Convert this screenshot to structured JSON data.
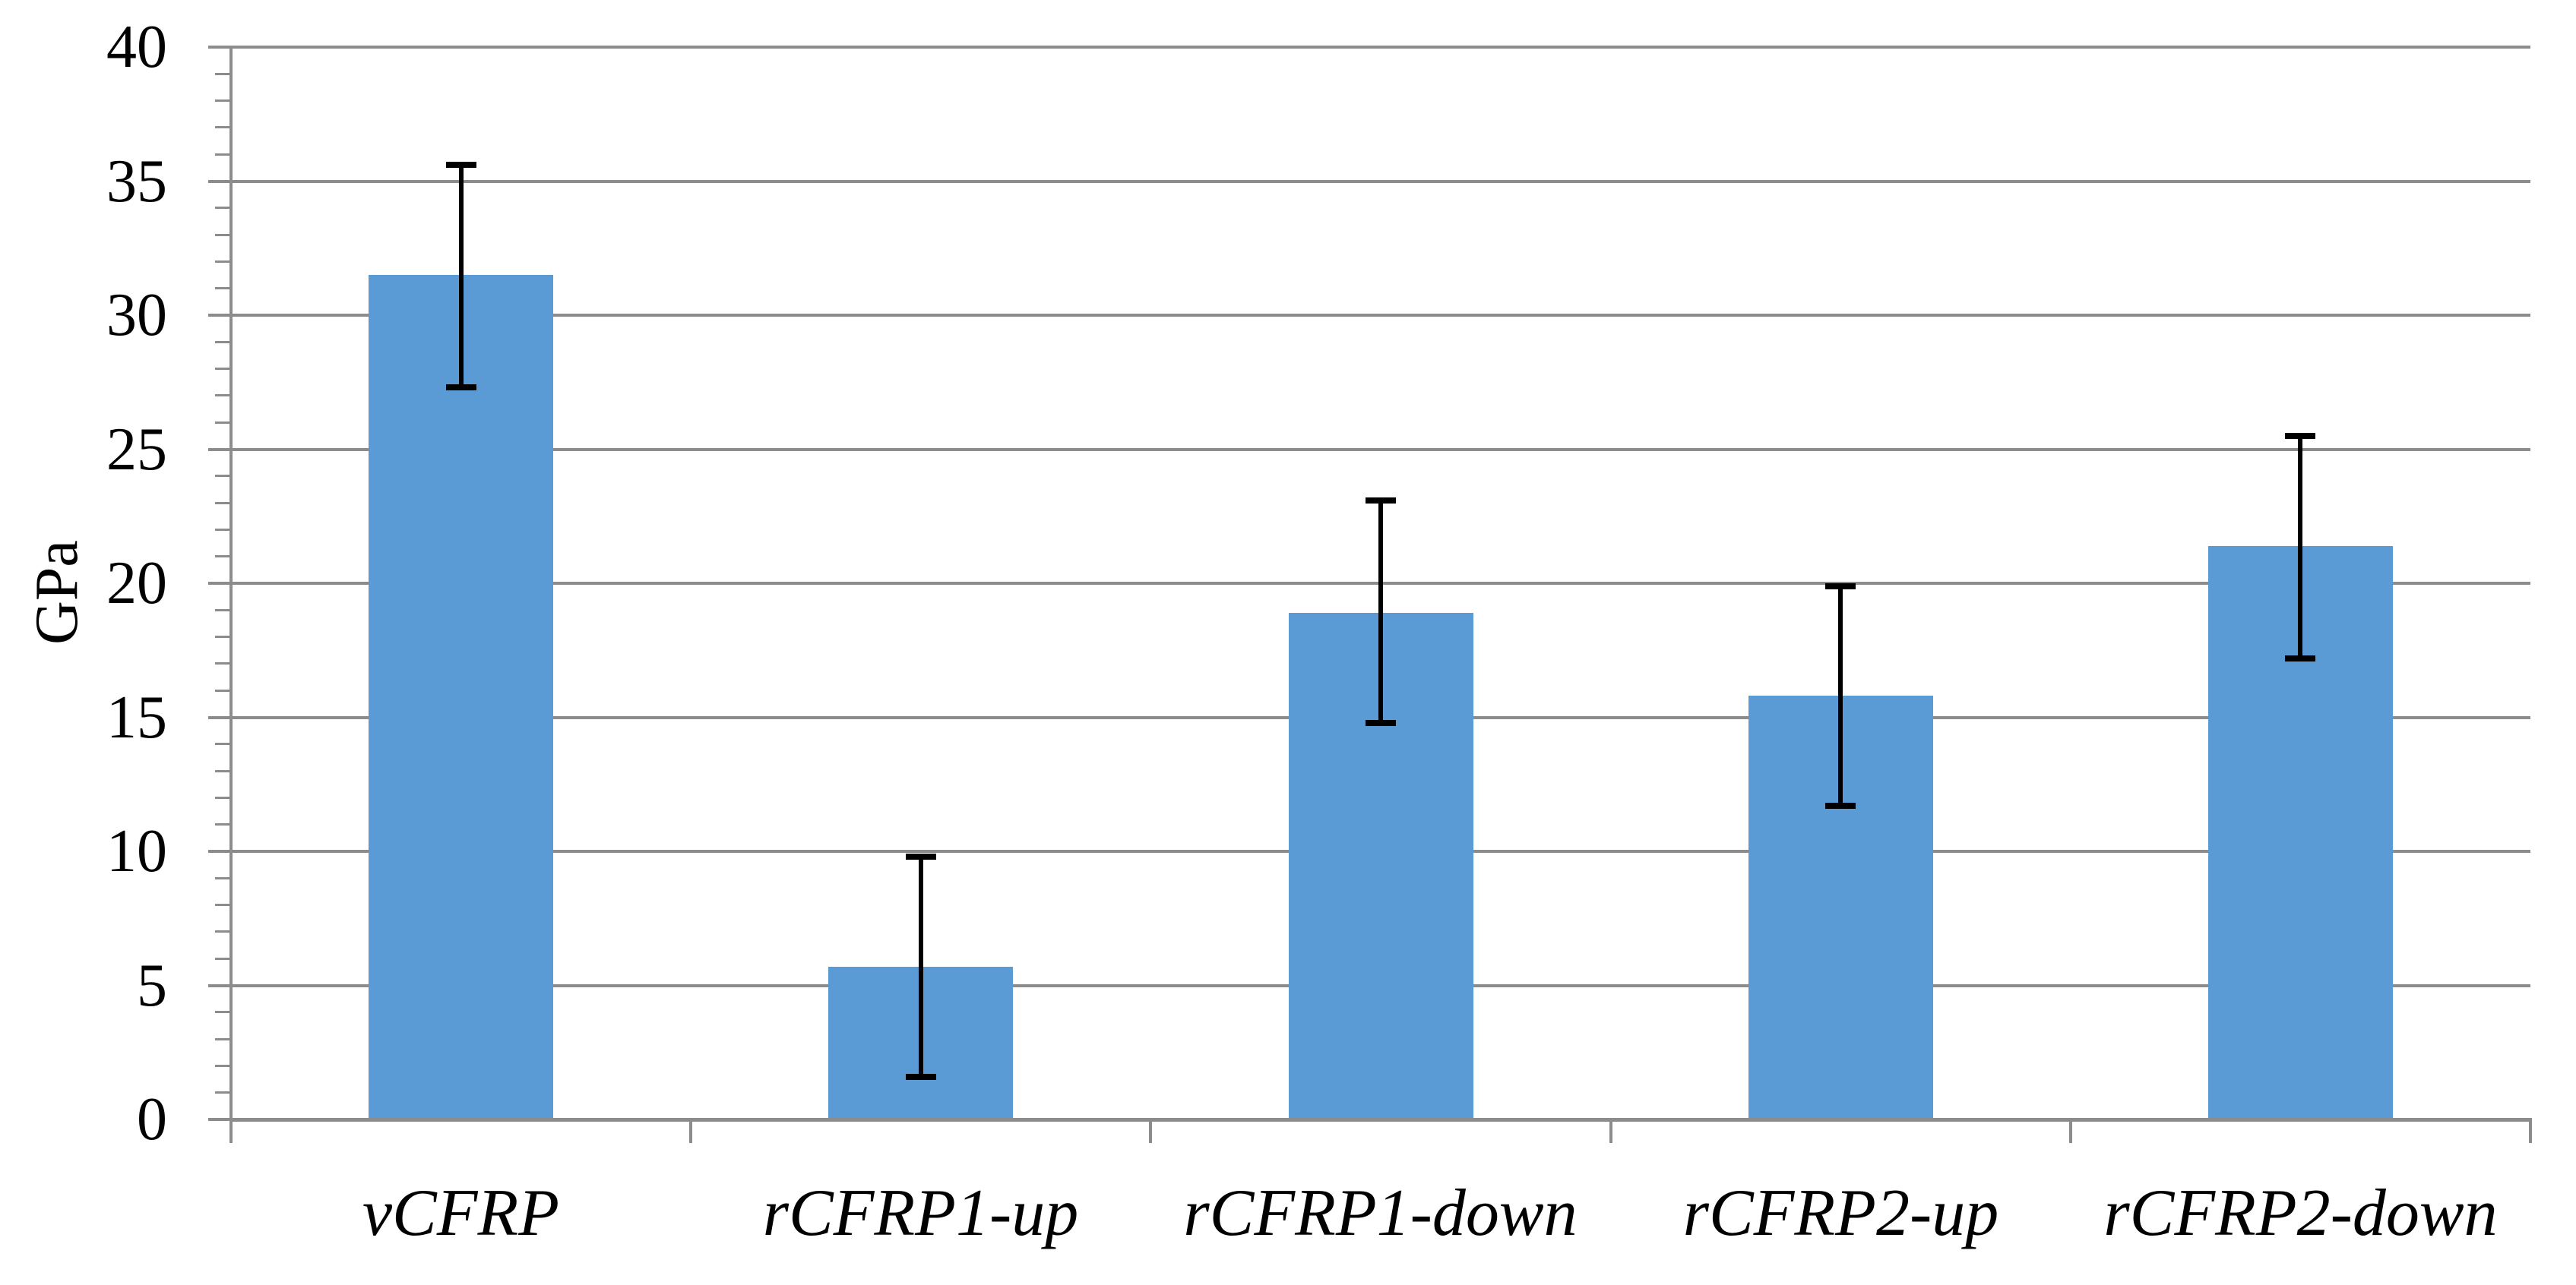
{
  "chart_data": {
    "type": "bar",
    "title": "",
    "xlabel": "",
    "ylabel": "GPa",
    "ylim": [
      0,
      40
    ],
    "y_major_step": 5,
    "y_minor_step": 1,
    "y_tick_labels": [
      "0",
      "5",
      "10",
      "15",
      "20",
      "25",
      "30",
      "35",
      "40"
    ],
    "categories": [
      "vCFRP",
      "rCFRP1-up",
      "rCFRP1-down",
      "rCFRP2-up",
      "rCFRP2-down"
    ],
    "values": [
      31.5,
      5.7,
      18.9,
      15.8,
      21.4
    ],
    "error_low": [
      27.3,
      1.6,
      14.8,
      11.7,
      17.2
    ],
    "error_high": [
      35.6,
      9.8,
      23.1,
      19.9,
      25.5
    ],
    "grid": true,
    "legend": false,
    "colors": {
      "bar": "#5B9BD5",
      "error": "#000000",
      "grid": "#8C8C8C",
      "axis": "#8C8C8C",
      "text": "#000000",
      "background": "#FFFFFF"
    }
  }
}
